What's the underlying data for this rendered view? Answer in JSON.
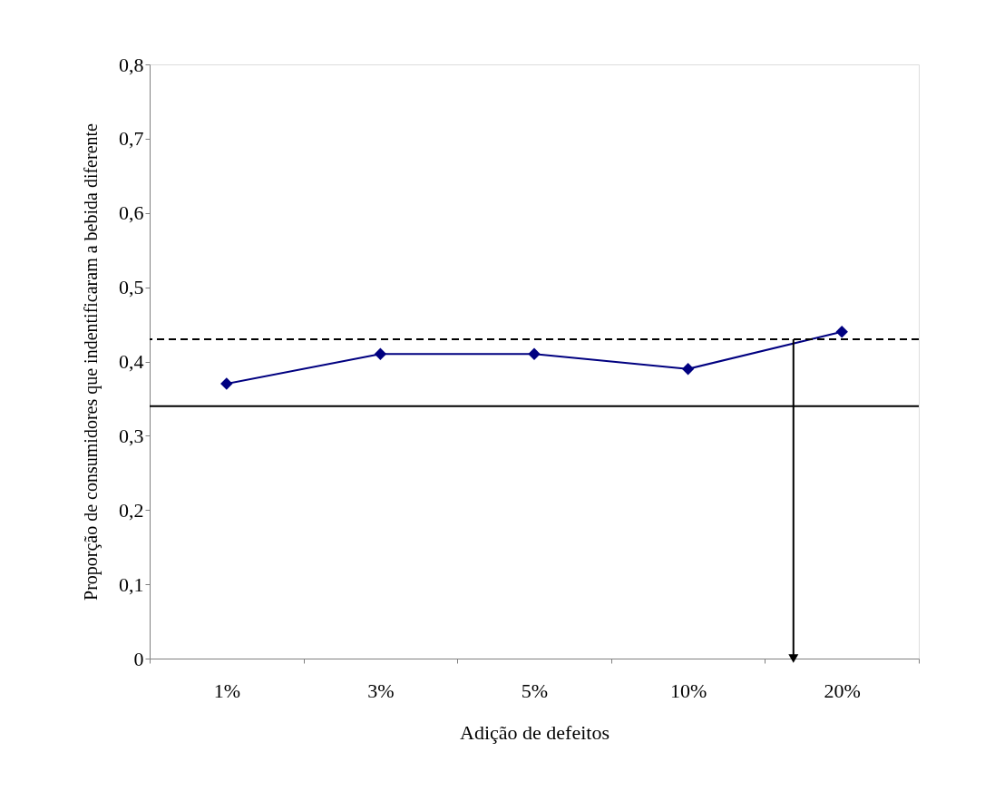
{
  "chart_data": {
    "type": "line",
    "xlabel": "Adição de defeitos",
    "ylabel": "Proporção de consumidores que indentificaram a bebida diferente",
    "categories": [
      "1%",
      "3%",
      "5%",
      "10%",
      "20%"
    ],
    "series": [
      {
        "color": "#000080",
        "values": [
          0.37,
          0.41,
          0.41,
          0.39,
          0.44
        ]
      }
    ],
    "ylim": [
      0,
      0.8
    ],
    "yticks": [
      0,
      {
        "value": 0.1,
        "label": "0,1"
      },
      {
        "value": 0.2,
        "label": "0,2"
      },
      {
        "value": 0.3,
        "label": "0,3"
      },
      {
        "value": 0.4,
        "label": "0,4"
      },
      {
        "value": 0.5,
        "label": "0,5"
      },
      {
        "value": 0.6,
        "label": "0,6"
      },
      {
        "value": 0.7,
        "label": "0,7"
      },
      {
        "value": 0.8,
        "label": "0,8"
      }
    ],
    "ref_lines": [
      {
        "axis": "y",
        "value": 0.43,
        "color": "#000000",
        "line_style": "dashed"
      },
      {
        "axis": "y",
        "value": 0.34,
        "color": "#000000",
        "line_style": "solid"
      }
    ],
    "marker": "diamond",
    "line_style": "solid",
    "grid": false
  }
}
